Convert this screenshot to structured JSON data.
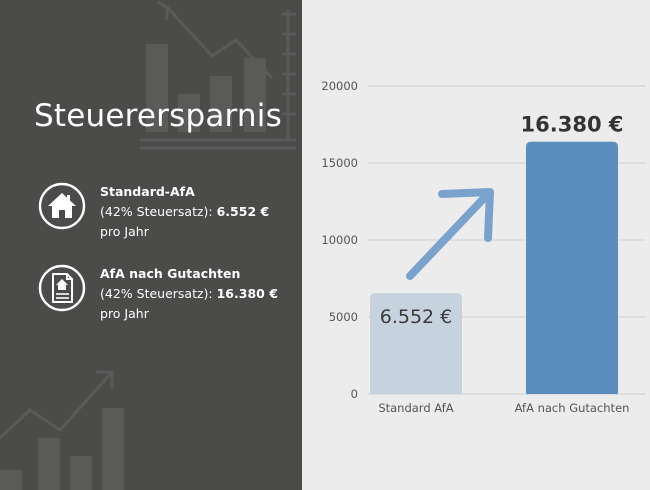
{
  "left": {
    "title": "Steuerersparnis",
    "items": [
      {
        "icon": "house-icon",
        "heading": "Standard-AfA",
        "rate": "(42% Steuersatz): ",
        "value": "6.552 €",
        "period": "pro Jahr"
      },
      {
        "icon": "document-icon",
        "heading": "AfA nach Gutachten",
        "rate": "(42% Steuersatz): ",
        "value": "16.380 €",
        "period": "pro Jahr"
      }
    ]
  },
  "chart_data": {
    "type": "bar",
    "categories": [
      "Standard AfA",
      "AfA nach Gutachten"
    ],
    "values": [
      6552,
      16380
    ],
    "data_labels": [
      "6.552 €",
      "16.380 €"
    ],
    "ylim": [
      0,
      20000
    ],
    "yticks": [
      0,
      5000,
      10000,
      15000,
      20000
    ],
    "grid": true,
    "bar_colors": [
      "#c6d3df",
      "#5b8dbe"
    ],
    "arrow_color": "#79a3cc",
    "title": "",
    "xlabel": "",
    "ylabel": ""
  },
  "colors": {
    "left_background": "#4b4b4a",
    "right_background": "#ececec"
  }
}
